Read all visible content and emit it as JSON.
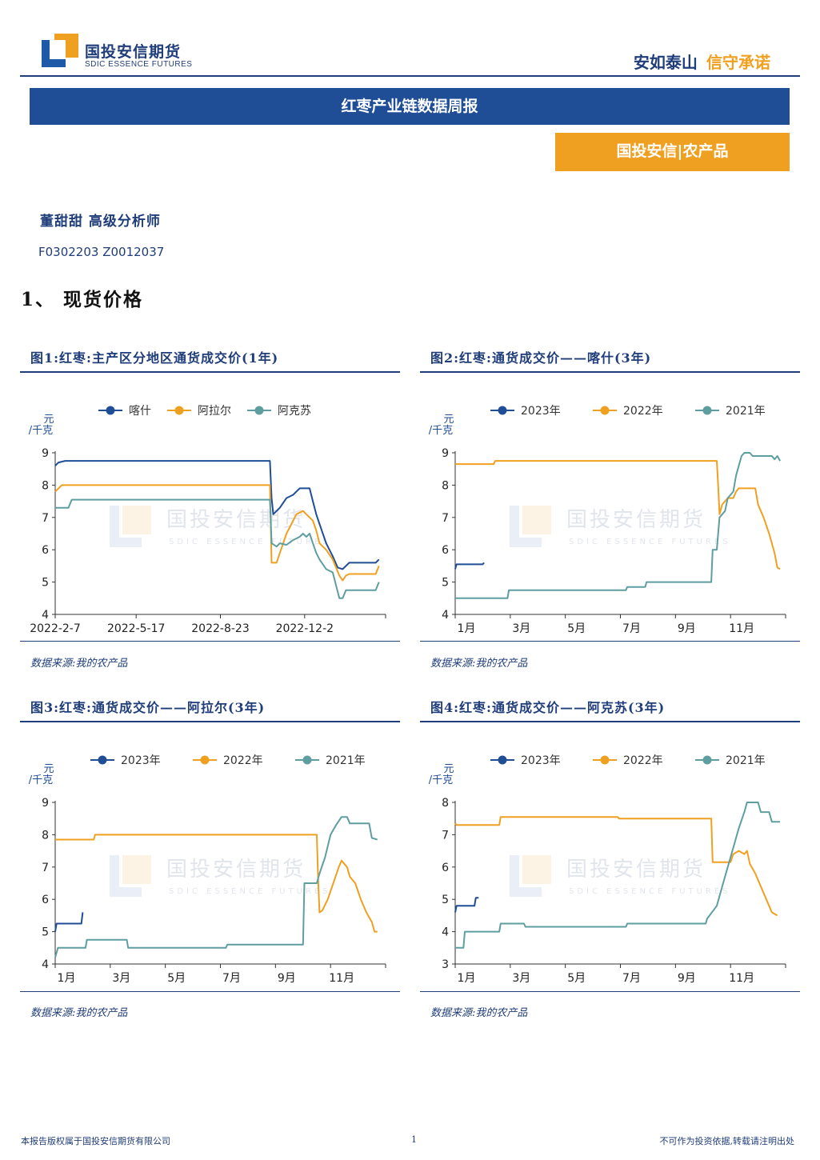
{
  "header": {
    "company_cn": "国投安信期货",
    "company_en": "SDIC ESSENCE FUTURES",
    "slogan_part1": "安如泰山",
    "slogan_part2": "信守承诺"
  },
  "report_title": "红枣产业链数据周报",
  "department": "国投安信|农产品",
  "author": "董甜甜  高级分析师",
  "author_codes": "F0302203  Z0012037",
  "section_heading": "1、 现货价格",
  "watermark": {
    "cn": "国投安信期货",
    "en": "SDIC ESSENCE FUTURES"
  },
  "colors": {
    "navy": "#1f4e96",
    "orange": "#f0a020",
    "teal": "#5f9ea0",
    "brand": "#1f3d7a"
  },
  "figures": [
    {
      "title": "图1:红枣:主产区分地区通货成交价(1年)",
      "source": "数据来源:我的农产品"
    },
    {
      "title": "图2:红枣:通货成交价——喀什(3年)",
      "source": "数据来源:我的农产品"
    },
    {
      "title": "图3:红枣:通货成交价——阿拉尔(3年)",
      "source": "数据来源:我的农产品"
    },
    {
      "title": "图4:红枣:通货成交价——阿克苏(3年)",
      "source": "数据来源:我的农产品"
    }
  ],
  "chart_data": [
    {
      "type": "line",
      "ylabel": "元/千克",
      "ylim": [
        4,
        9
      ],
      "yticks": [
        4,
        5,
        6,
        7,
        8,
        9
      ],
      "xlim": [
        0,
        1
      ],
      "xticks": [
        {
          "x": 0.0,
          "label": "2022-2-7"
        },
        {
          "x": 0.245,
          "label": "2022-5-17"
        },
        {
          "x": 0.5,
          "label": "2022-8-23"
        },
        {
          "x": 0.755,
          "label": "2022-12-2"
        }
      ],
      "legend_position": "top",
      "series": [
        {
          "name": "喀什",
          "color": "#1f4e96",
          "points": [
            [
              0,
              8.6
            ],
            [
              0.01,
              8.7
            ],
            [
              0.03,
              8.75
            ],
            [
              0.65,
              8.75
            ],
            [
              0.655,
              7.6
            ],
            [
              0.66,
              7.1
            ],
            [
              0.68,
              7.3
            ],
            [
              0.7,
              7.6
            ],
            [
              0.72,
              7.7
            ],
            [
              0.74,
              7.9
            ],
            [
              0.77,
              7.9
            ],
            [
              0.78,
              7.5
            ],
            [
              0.79,
              7.1
            ],
            [
              0.8,
              6.8
            ],
            [
              0.82,
              6.2
            ],
            [
              0.84,
              5.8
            ],
            [
              0.855,
              5.45
            ],
            [
              0.87,
              5.4
            ],
            [
              0.89,
              5.6
            ],
            [
              0.97,
              5.6
            ],
            [
              0.98,
              5.7
            ]
          ]
        },
        {
          "name": "阿拉尔",
          "color": "#f0a020",
          "points": [
            [
              0,
              7.8
            ],
            [
              0.02,
              8.0
            ],
            [
              0.65,
              8.0
            ],
            [
              0.655,
              5.6
            ],
            [
              0.67,
              5.6
            ],
            [
              0.68,
              5.9
            ],
            [
              0.69,
              6.2
            ],
            [
              0.7,
              6.5
            ],
            [
              0.715,
              6.8
            ],
            [
              0.73,
              7.1
            ],
            [
              0.75,
              7.2
            ],
            [
              0.76,
              7.1
            ],
            [
              0.78,
              6.9
            ],
            [
              0.79,
              6.6
            ],
            [
              0.8,
              6.2
            ],
            [
              0.82,
              6.0
            ],
            [
              0.84,
              5.7
            ],
            [
              0.86,
              5.2
            ],
            [
              0.87,
              5.05
            ],
            [
              0.88,
              5.2
            ],
            [
              0.89,
              5.25
            ],
            [
              0.97,
              5.25
            ],
            [
              0.98,
              5.5
            ]
          ]
        },
        {
          "name": "阿克苏",
          "color": "#5f9ea0",
          "points": [
            [
              0,
              7.3
            ],
            [
              0.04,
              7.3
            ],
            [
              0.05,
              7.55
            ],
            [
              0.65,
              7.55
            ],
            [
              0.655,
              6.2
            ],
            [
              0.67,
              6.1
            ],
            [
              0.68,
              6.2
            ],
            [
              0.7,
              6.15
            ],
            [
              0.72,
              6.3
            ],
            [
              0.74,
              6.4
            ],
            [
              0.75,
              6.5
            ],
            [
              0.76,
              6.4
            ],
            [
              0.77,
              6.5
            ],
            [
              0.78,
              6.2
            ],
            [
              0.79,
              5.9
            ],
            [
              0.8,
              5.7
            ],
            [
              0.82,
              5.4
            ],
            [
              0.84,
              5.3
            ],
            [
              0.86,
              4.5
            ],
            [
              0.87,
              4.5
            ],
            [
              0.88,
              4.75
            ],
            [
              0.97,
              4.75
            ],
            [
              0.98,
              5.0
            ]
          ]
        }
      ]
    },
    {
      "type": "line",
      "ylabel": "元/千克",
      "ylim": [
        4,
        9
      ],
      "yticks": [
        4,
        5,
        6,
        7,
        8,
        9
      ],
      "xlim": [
        1,
        13
      ],
      "xticks": [
        {
          "x": 1,
          "label": "1月"
        },
        {
          "x": 3,
          "label": "3月"
        },
        {
          "x": 5,
          "label": "5月"
        },
        {
          "x": 7,
          "label": "7月"
        },
        {
          "x": 9,
          "label": "9月"
        },
        {
          "x": 11,
          "label": "11月"
        }
      ],
      "legend_position": "top",
      "series": [
        {
          "name": "2023年",
          "color": "#1f4e96",
          "points": [
            [
              1,
              5.4
            ],
            [
              1.05,
              5.55
            ],
            [
              2.0,
              5.55
            ],
            [
              2.05,
              5.6
            ]
          ]
        },
        {
          "name": "2022年",
          "color": "#f0a020",
          "points": [
            [
              1,
              8.65
            ],
            [
              2.4,
              8.65
            ],
            [
              2.45,
              8.75
            ],
            [
              10.5,
              8.75
            ],
            [
              10.55,
              8.0
            ],
            [
              10.6,
              7.1
            ],
            [
              10.7,
              7.4
            ],
            [
              10.9,
              7.6
            ],
            [
              11.1,
              7.6
            ],
            [
              11.2,
              7.8
            ],
            [
              11.3,
              7.9
            ],
            [
              11.9,
              7.9
            ],
            [
              12.0,
              7.4
            ],
            [
              12.2,
              7.0
            ],
            [
              12.4,
              6.5
            ],
            [
              12.6,
              5.9
            ],
            [
              12.7,
              5.45
            ],
            [
              12.8,
              5.4
            ]
          ]
        },
        {
          "name": "2021年",
          "color": "#5f9ea0",
          "points": [
            [
              1,
              4.5
            ],
            [
              2.9,
              4.5
            ],
            [
              2.95,
              4.75
            ],
            [
              7.2,
              4.75
            ],
            [
              7.25,
              4.85
            ],
            [
              7.9,
              4.85
            ],
            [
              7.95,
              5.0
            ],
            [
              10.3,
              5.0
            ],
            [
              10.35,
              6.0
            ],
            [
              10.5,
              6.0
            ],
            [
              10.6,
              7.0
            ],
            [
              10.8,
              7.2
            ],
            [
              10.9,
              7.6
            ],
            [
              11.1,
              7.8
            ],
            [
              11.2,
              8.3
            ],
            [
              11.3,
              8.6
            ],
            [
              11.4,
              8.9
            ],
            [
              11.5,
              9.0
            ],
            [
              11.7,
              9.0
            ],
            [
              11.8,
              8.9
            ],
            [
              12.5,
              8.9
            ],
            [
              12.6,
              8.8
            ],
            [
              12.7,
              8.9
            ],
            [
              12.8,
              8.75
            ]
          ]
        }
      ]
    },
    {
      "type": "line",
      "ylabel": "元/千克",
      "ylim": [
        4,
        9
      ],
      "yticks": [
        4,
        5,
        6,
        7,
        8,
        9
      ],
      "xlim": [
        1,
        13
      ],
      "xticks": [
        {
          "x": 1,
          "label": "1月"
        },
        {
          "x": 3,
          "label": "3月"
        },
        {
          "x": 5,
          "label": "5月"
        },
        {
          "x": 7,
          "label": "7月"
        },
        {
          "x": 9,
          "label": "9月"
        },
        {
          "x": 11,
          "label": "11月"
        }
      ],
      "legend_position": "top",
      "series": [
        {
          "name": "2023年",
          "color": "#1f4e96",
          "points": [
            [
              1,
              5.0
            ],
            [
              1.05,
              5.25
            ],
            [
              1.95,
              5.25
            ],
            [
              2.0,
              5.6
            ]
          ]
        },
        {
          "name": "2022年",
          "color": "#f0a020",
          "points": [
            [
              1,
              7.85
            ],
            [
              2.4,
              7.85
            ],
            [
              2.45,
              8.0
            ],
            [
              10.5,
              8.0
            ],
            [
              10.55,
              6.6
            ],
            [
              10.6,
              5.6
            ],
            [
              10.7,
              5.65
            ],
            [
              10.9,
              6.0
            ],
            [
              11.1,
              6.5
            ],
            [
              11.3,
              7.0
            ],
            [
              11.4,
              7.2
            ],
            [
              11.6,
              7.0
            ],
            [
              11.7,
              6.7
            ],
            [
              11.9,
              6.5
            ],
            [
              12.1,
              6.0
            ],
            [
              12.3,
              5.6
            ],
            [
              12.5,
              5.3
            ],
            [
              12.6,
              5.0
            ],
            [
              12.7,
              5.0
            ]
          ]
        },
        {
          "name": "2021年",
          "color": "#5f9ea0",
          "points": [
            [
              1,
              4.2
            ],
            [
              1.1,
              4.5
            ],
            [
              2.1,
              4.5
            ],
            [
              2.15,
              4.75
            ],
            [
              3.6,
              4.75
            ],
            [
              3.65,
              4.5
            ],
            [
              7.2,
              4.5
            ],
            [
              7.25,
              4.6
            ],
            [
              10.0,
              4.6
            ],
            [
              10.05,
              6.5
            ],
            [
              10.5,
              6.5
            ],
            [
              10.6,
              6.8
            ],
            [
              10.8,
              7.3
            ],
            [
              11.0,
              8.0
            ],
            [
              11.2,
              8.3
            ],
            [
              11.4,
              8.55
            ],
            [
              11.6,
              8.55
            ],
            [
              11.7,
              8.35
            ],
            [
              12.4,
              8.35
            ],
            [
              12.5,
              7.9
            ],
            [
              12.7,
              7.85
            ]
          ]
        }
      ]
    },
    {
      "type": "line",
      "ylabel": "元/千克",
      "ylim": [
        3,
        8
      ],
      "yticks": [
        3,
        4,
        5,
        6,
        7,
        8
      ],
      "xlim": [
        1,
        13
      ],
      "xticks": [
        {
          "x": 1,
          "label": "1月"
        },
        {
          "x": 3,
          "label": "3月"
        },
        {
          "x": 5,
          "label": "5月"
        },
        {
          "x": 7,
          "label": "7月"
        },
        {
          "x": 9,
          "label": "9月"
        },
        {
          "x": 11,
          "label": "11月"
        }
      ],
      "legend_position": "top",
      "series": [
        {
          "name": "2023年",
          "color": "#1f4e96",
          "points": [
            [
              1,
              4.6
            ],
            [
              1.05,
              4.8
            ],
            [
              1.7,
              4.8
            ],
            [
              1.75,
              5.05
            ],
            [
              1.85,
              5.05
            ]
          ]
        },
        {
          "name": "2022年",
          "color": "#f0a020",
          "points": [
            [
              1,
              7.35
            ],
            [
              1.05,
              7.3
            ],
            [
              2.6,
              7.3
            ],
            [
              2.65,
              7.55
            ],
            [
              6.9,
              7.55
            ],
            [
              6.95,
              7.5
            ],
            [
              10.3,
              7.5
            ],
            [
              10.35,
              6.15
            ],
            [
              11.0,
              6.15
            ],
            [
              11.1,
              6.4
            ],
            [
              11.3,
              6.5
            ],
            [
              11.5,
              6.4
            ],
            [
              11.6,
              6.5
            ],
            [
              11.7,
              6.1
            ],
            [
              11.9,
              5.8
            ],
            [
              12.1,
              5.4
            ],
            [
              12.3,
              5.0
            ],
            [
              12.5,
              4.6
            ],
            [
              12.7,
              4.5
            ]
          ]
        },
        {
          "name": "2021年",
          "color": "#5f9ea0",
          "points": [
            [
              1,
              3.5
            ],
            [
              1.3,
              3.5
            ],
            [
              1.35,
              4.0
            ],
            [
              2.6,
              4.0
            ],
            [
              2.65,
              4.25
            ],
            [
              3.5,
              4.25
            ],
            [
              3.55,
              4.15
            ],
            [
              7.2,
              4.15
            ],
            [
              7.25,
              4.25
            ],
            [
              10.1,
              4.25
            ],
            [
              10.15,
              4.4
            ],
            [
              10.5,
              4.8
            ],
            [
              10.7,
              5.4
            ],
            [
              10.9,
              6.0
            ],
            [
              11.1,
              6.6
            ],
            [
              11.3,
              7.2
            ],
            [
              11.5,
              7.7
            ],
            [
              11.6,
              8.0
            ],
            [
              12.0,
              8.0
            ],
            [
              12.1,
              7.7
            ],
            [
              12.4,
              7.7
            ],
            [
              12.5,
              7.4
            ],
            [
              12.8,
              7.4
            ]
          ]
        }
      ]
    }
  ],
  "footer": {
    "left": "本报告版权属于国投安信期货有限公司",
    "page": "1",
    "right": "不可作为投资依据,转载请注明出处"
  }
}
